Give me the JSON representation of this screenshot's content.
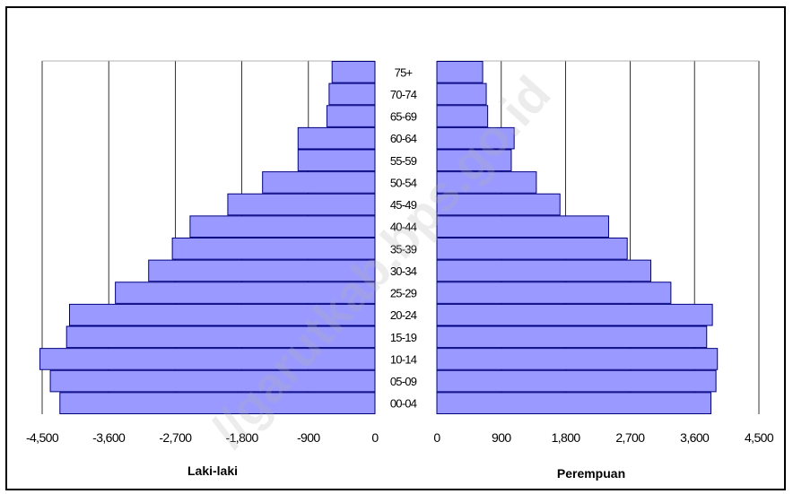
{
  "chart_data": {
    "type": "bar",
    "orientation": "horizontal",
    "categories": [
      "00-04",
      "05-09",
      "10-14",
      "15-19",
      "20-24",
      "25-29",
      "30-34",
      "35-39",
      "40-44",
      "45-49",
      "50-54",
      "55-59",
      "60-64",
      "65-69",
      "70-74",
      "75+"
    ],
    "series": [
      {
        "name": "Laki-laki",
        "values": [
          4260,
          4390,
          4530,
          4170,
          4130,
          3510,
          3060,
          2740,
          2500,
          1990,
          1520,
          1040,
          1040,
          650,
          620,
          580
        ]
      },
      {
        "name": "Perempuan",
        "values": [
          3830,
          3900,
          3920,
          3770,
          3850,
          3270,
          2990,
          2660,
          2400,
          1720,
          1390,
          1040,
          1080,
          710,
          690,
          640
        ]
      }
    ],
    "left_panel": {
      "xlabel": "Laki-laki",
      "xlim": [
        -4500,
        0
      ],
      "ticks": [
        "-4,500",
        "-3,600",
        "-2,700",
        "-1,800",
        "-900",
        "0"
      ]
    },
    "right_panel": {
      "xlabel": "Perempuan",
      "xlim": [
        0,
        4500
      ],
      "ticks": [
        "0",
        "900",
        "1,800",
        "2,700",
        "3,600",
        "4,500"
      ]
    },
    "grid": true,
    "bar_color": "#9999ff",
    "watermark": "//garutkab.bps.go.id"
  }
}
